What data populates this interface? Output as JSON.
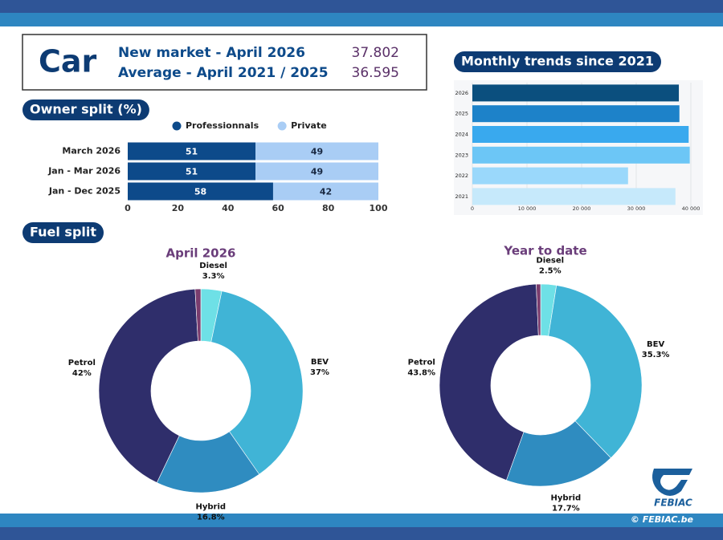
{
  "header": {
    "title": "Car",
    "rows": [
      {
        "label": "New market - April 2026",
        "value": "37.802"
      },
      {
        "label": "Average - April 2021 / 2025",
        "value": "36.595"
      }
    ]
  },
  "sections": {
    "fuel_split": "Fuel split"
  },
  "chart_data": [
    {
      "type": "bar",
      "orientation": "horizontal",
      "stacked": true,
      "title": "Owner split (%)",
      "categories": [
        "March 2026",
        "Jan - Mar 2026",
        "Jan - Dec 2025"
      ],
      "series": [
        {
          "name": "Professionnals",
          "color": "#0d4a8a",
          "values": [
            51,
            51,
            58
          ]
        },
        {
          "name": "Private",
          "color": "#a9cdf5",
          "values": [
            49,
            49,
            42
          ]
        }
      ],
      "xlim": [
        0,
        100
      ],
      "xticks": [
        0,
        20,
        40,
        60,
        80,
        100
      ],
      "legend": "top"
    },
    {
      "type": "bar",
      "orientation": "horizontal",
      "title": "Monthly trends since 2021",
      "categories": [
        "2026",
        "2025",
        "2024",
        "2023",
        "2022",
        "2021"
      ],
      "values": [
        37802,
        37900,
        39600,
        39800,
        28500,
        37175
      ],
      "colors": [
        "#0b4f7e",
        "#1d82c9",
        "#39a9ee",
        "#6cc6f6",
        "#9ad8fb",
        "#c6e9fb"
      ],
      "xlim": [
        0,
        40000
      ],
      "xticks": [
        0,
        {
          "value": 10000,
          "label": "10 000"
        },
        {
          "value": 20000,
          "label": "20 000"
        },
        {
          "value": 30000,
          "label": "30 000"
        },
        {
          "value": 40000,
          "label": "40 000"
        }
      ],
      "grid": true
    },
    {
      "type": "pie",
      "donut": true,
      "title": "April 2026",
      "categories": [
        "Diesel",
        "BEV",
        "Hybrid",
        "Petrol",
        null
      ],
      "values": [
        3.3,
        37,
        16.8,
        42,
        0.9
      ],
      "value_labels": [
        "3.3%",
        "37%",
        "16.8%",
        "42%",
        null
      ],
      "colors": [
        "#6ee0e6",
        "#40b4d6",
        "#2f8cc0",
        "#2f2e6b",
        "#7a3d6e"
      ]
    },
    {
      "type": "pie",
      "donut": true,
      "title": "Year to date",
      "categories": [
        "Diesel",
        "BEV",
        "Hybrid",
        "Petrol",
        null
      ],
      "values": [
        2.5,
        35.3,
        17.7,
        43.8,
        0.7
      ],
      "value_labels": [
        "2.5%",
        "35.3%",
        "17.7%",
        "43.8%",
        null
      ],
      "colors": [
        "#6ee0e6",
        "#40b4d6",
        "#2f8cc0",
        "#2f2e6b",
        "#7a3d6e"
      ]
    }
  ],
  "logo": "FEBIAC",
  "footer": "© FEBIAC.be"
}
